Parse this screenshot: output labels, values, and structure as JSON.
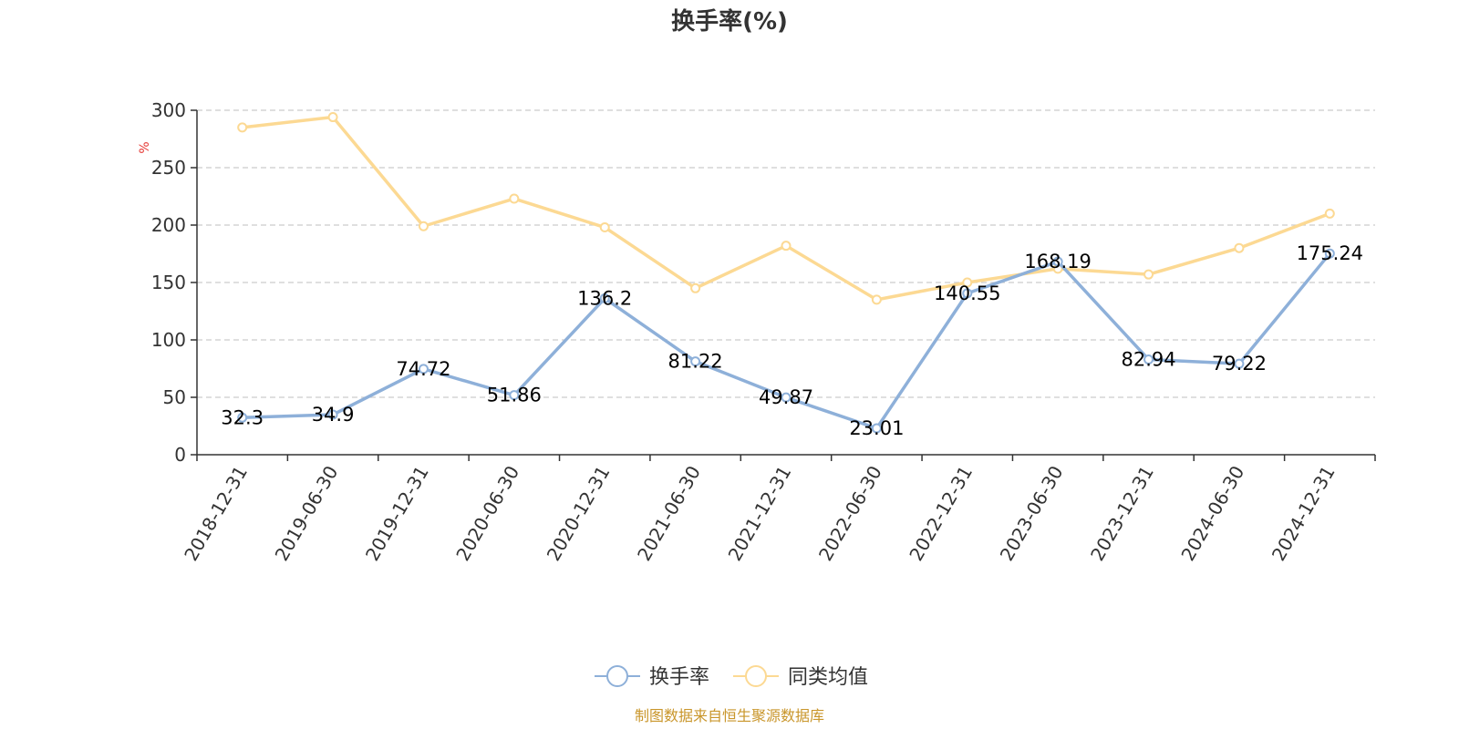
{
  "chart_data": {
    "type": "line",
    "title": "换手率(%)",
    "y_unit": "%",
    "ylim": [
      0,
      300
    ],
    "yticks": [
      0,
      50,
      100,
      150,
      200,
      250,
      300
    ],
    "grid": true,
    "legend_position": "bottom-center",
    "categories": [
      "2018-12-31",
      "2019-06-30",
      "2019-12-31",
      "2020-06-30",
      "2020-12-31",
      "2021-06-30",
      "2021-12-31",
      "2022-06-30",
      "2022-12-31",
      "2023-06-30",
      "2023-12-31",
      "2024-06-30",
      "2024-12-31"
    ],
    "series": [
      {
        "name": "换手率",
        "color": "#8eb0d9",
        "values": [
          32.3,
          34.9,
          74.72,
          51.86,
          136.2,
          81.22,
          49.87,
          23.01,
          140.55,
          168.19,
          82.94,
          79.22,
          175.24
        ],
        "labels": [
          "32.3",
          "34.9",
          "74.72",
          "51.86",
          "136.2",
          "81.22",
          "49.87",
          "23.01",
          "140.55",
          "168.19",
          "82.94",
          "79.22",
          "175.24"
        ],
        "show_labels": true
      },
      {
        "name": "同类均值",
        "color": "#fcd993",
        "values": [
          285,
          294,
          199,
          223,
          198,
          145,
          182,
          135,
          150,
          162,
          157,
          180,
          210
        ],
        "show_labels": false
      }
    ]
  },
  "footer": {
    "source": "制图数据来自恒生聚源数据库"
  }
}
